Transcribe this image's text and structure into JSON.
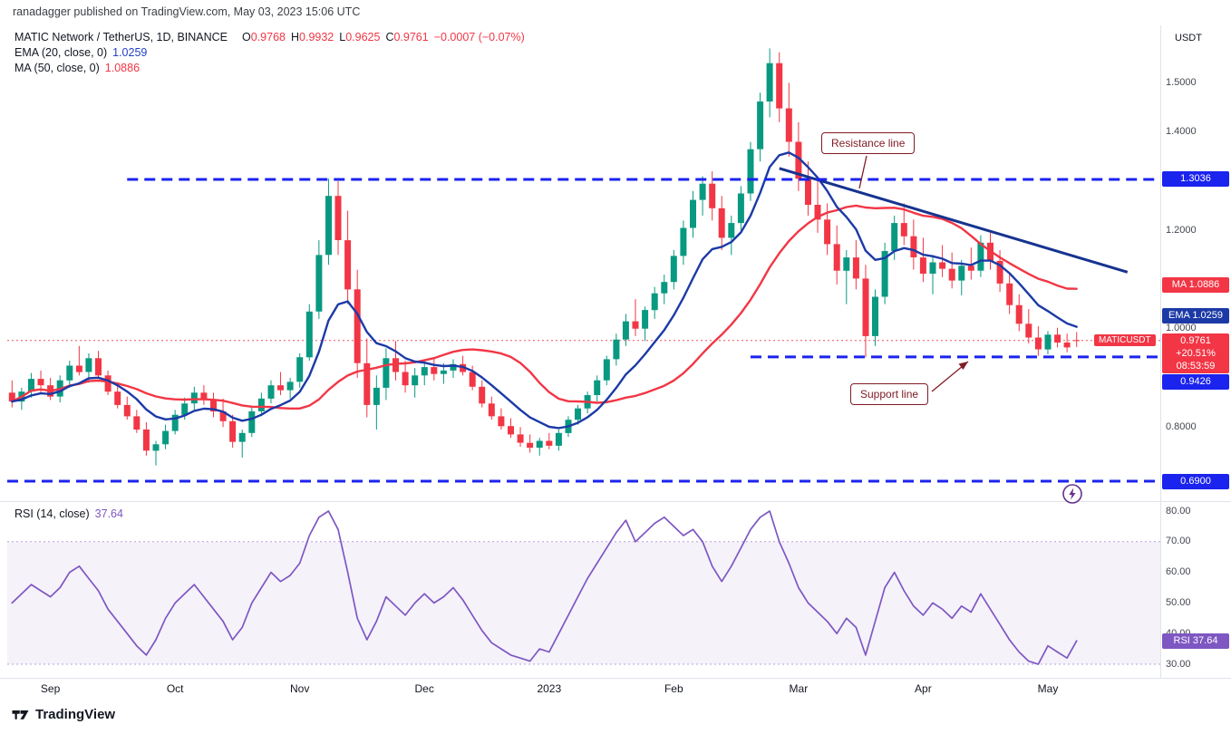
{
  "colors": {
    "up": "#089981",
    "down": "#f23645",
    "blue": "#1b23ee",
    "ema": "#1c3aa6",
    "ma": "#f23645",
    "trend": "#16338f",
    "rsi": "#7e57c2",
    "rsi_fill": "rgba(126,87,194,0.08)",
    "annotation": "#801c24",
    "axis_text": "#434651",
    "text": "#131722"
  },
  "header": {
    "published_line": "ranadagger published on TradingView.com, May 03, 2023 15:06 UTC"
  },
  "legend": {
    "symbol": "MATIC Network / TetherUS, 1D, BINANCE",
    "ohlc": {
      "o_label": "O",
      "o_value": "0.9768",
      "h_label": "H",
      "h_value": "0.9932",
      "l_label": "L",
      "l_value": "0.9625",
      "c_label": "C",
      "c_value": "0.9761",
      "change": "−0.0007 (−0.07%)"
    },
    "ema": {
      "label": "EMA (20, close, 0)",
      "value": "1.0259"
    },
    "ma": {
      "label": "MA (50, close, 0)",
      "value": "1.0886"
    }
  },
  "rsi_legend": {
    "label": "RSI (14, close)",
    "value": "37.64"
  },
  "annotations": {
    "resistance_label": "Resistance line",
    "support_label": "Support line"
  },
  "axis": {
    "unit": "USDT",
    "price_ticks": [
      {
        "label": "1.5000",
        "value": 1.5
      },
      {
        "label": "1.4000",
        "value": 1.4
      },
      {
        "label": "1.2000",
        "value": 1.2
      },
      {
        "label": "1.0000",
        "value": 1.0
      },
      {
        "label": "0.8000",
        "value": 0.8
      }
    ],
    "rsi_ticks": [
      {
        "label": "80.00",
        "value": 80
      },
      {
        "label": "70.00",
        "value": 70
      },
      {
        "label": "60.00",
        "value": 60
      },
      {
        "label": "50.00",
        "value": 50
      },
      {
        "label": "40.00",
        "value": 40
      },
      {
        "label": "30.00",
        "value": 30
      }
    ],
    "time_ticks": [
      {
        "label": "Sep",
        "index": 4
      },
      {
        "label": "Oct",
        "index": 17
      },
      {
        "label": "Nov",
        "index": 30
      },
      {
        "label": "Dec",
        "index": 43
      },
      {
        "label": "2023",
        "index": 56
      },
      {
        "label": "Feb",
        "index": 69
      },
      {
        "label": "Mar",
        "index": 82
      },
      {
        "label": "Apr",
        "index": 95
      },
      {
        "label": "May",
        "index": 108
      }
    ],
    "level_badges": [
      {
        "label": "1.3036",
        "price": 1.3036
      },
      {
        "label": "0.9426",
        "price": 0.9426
      },
      {
        "label": "0.6900",
        "price": 0.69
      }
    ],
    "ma_badge": {
      "text": "MA 1.0886",
      "price": 1.0886
    },
    "ema_badge": {
      "text": "EMA 1.0259",
      "price": 1.0259
    },
    "price_badge": {
      "symbol": "MATICUSDT",
      "price": "0.9761",
      "price_value": 0.9761,
      "change_pct": "+20.51%",
      "countdown": "08:53:59"
    },
    "rsi_badge": {
      "text": "RSI 37.64",
      "value": 37.64
    }
  },
  "watermark": {
    "brand": "TradingView"
  },
  "chart_data": {
    "type": "candlestick",
    "symbol": "MATIC Network / TetherUS",
    "interval": "1D",
    "exchange": "BINANCE",
    "ohlc_last": {
      "open": 0.9768,
      "high": 0.9932,
      "low": 0.9625,
      "close": 0.9761,
      "change": -0.0007,
      "change_pct": -0.07
    },
    "price_axis": {
      "min": 0.664,
      "max": 1.617
    },
    "last_price": 0.9761,
    "levels": [
      {
        "price": 1.3036,
        "style": "dashed",
        "start_index": 12
      },
      {
        "price": 0.9426,
        "style": "dashed",
        "start_index": 77
      },
      {
        "price": 0.69,
        "style": "dashed",
        "start_index": null
      }
    ],
    "trendline": {
      "label": "Resistance line",
      "from": {
        "index": 80,
        "price": 1.326
      },
      "to": {
        "index": 116.3,
        "price": 1.115
      }
    },
    "overlays": [
      {
        "name": "EMA 20",
        "period": 20,
        "last": 1.0259
      },
      {
        "name": "MA 50",
        "period": 50,
        "last": 1.0886
      }
    ],
    "time_labels": [
      "Sep",
      "Oct",
      "Nov",
      "Dec",
      "2023",
      "Feb",
      "Mar",
      "Apr",
      "May"
    ],
    "candles": [
      [
        0.87,
        0.895,
        0.84,
        0.852
      ],
      [
        0.852,
        0.88,
        0.835,
        0.872
      ],
      [
        0.872,
        0.91,
        0.86,
        0.898
      ],
      [
        0.898,
        0.915,
        0.87,
        0.885
      ],
      [
        0.885,
        0.9,
        0.855,
        0.862
      ],
      [
        0.862,
        0.905,
        0.85,
        0.895
      ],
      [
        0.895,
        0.935,
        0.88,
        0.925
      ],
      [
        0.925,
        0.965,
        0.905,
        0.912
      ],
      [
        0.912,
        0.95,
        0.89,
        0.94
      ],
      [
        0.94,
        0.955,
        0.9,
        0.905
      ],
      [
        0.905,
        0.915,
        0.865,
        0.872
      ],
      [
        0.872,
        0.885,
        0.838,
        0.845
      ],
      [
        0.845,
        0.862,
        0.815,
        0.822
      ],
      [
        0.822,
        0.835,
        0.788,
        0.795
      ],
      [
        0.795,
        0.81,
        0.742,
        0.752
      ],
      [
        0.752,
        0.772,
        0.722,
        0.765
      ],
      [
        0.765,
        0.805,
        0.755,
        0.792
      ],
      [
        0.792,
        0.835,
        0.785,
        0.825
      ],
      [
        0.825,
        0.86,
        0.815,
        0.848
      ],
      [
        0.848,
        0.882,
        0.835,
        0.87
      ],
      [
        0.87,
        0.885,
        0.845,
        0.855
      ],
      [
        0.855,
        0.87,
        0.82,
        0.832
      ],
      [
        0.832,
        0.858,
        0.8,
        0.812
      ],
      [
        0.812,
        0.825,
        0.758,
        0.77
      ],
      [
        0.77,
        0.795,
        0.738,
        0.788
      ],
      [
        0.788,
        0.84,
        0.78,
        0.832
      ],
      [
        0.832,
        0.87,
        0.822,
        0.858
      ],
      [
        0.858,
        0.895,
        0.848,
        0.885
      ],
      [
        0.885,
        0.912,
        0.865,
        0.875
      ],
      [
        0.875,
        0.9,
        0.858,
        0.892
      ],
      [
        0.892,
        0.95,
        0.88,
        0.942
      ],
      [
        0.942,
        1.05,
        0.935,
        1.035
      ],
      [
        1.035,
        1.18,
        1.02,
        1.15
      ],
      [
        1.15,
        1.305,
        1.13,
        1.27
      ],
      [
        1.27,
        1.3,
        1.15,
        1.18
      ],
      [
        1.18,
        1.24,
        1.05,
        1.08
      ],
      [
        1.08,
        1.12,
        0.9,
        0.93
      ],
      [
        0.93,
        0.98,
        0.82,
        0.845
      ],
      [
        0.845,
        0.905,
        0.795,
        0.88
      ],
      [
        0.88,
        0.96,
        0.855,
        0.94
      ],
      [
        0.94,
        0.975,
        0.895,
        0.912
      ],
      [
        0.912,
        0.935,
        0.87,
        0.885
      ],
      [
        0.885,
        0.92,
        0.86,
        0.905
      ],
      [
        0.905,
        0.935,
        0.885,
        0.922
      ],
      [
        0.922,
        0.94,
        0.895,
        0.908
      ],
      [
        0.908,
        0.93,
        0.888,
        0.915
      ],
      [
        0.915,
        0.938,
        0.9,
        0.928
      ],
      [
        0.928,
        0.945,
        0.905,
        0.912
      ],
      [
        0.912,
        0.925,
        0.875,
        0.882
      ],
      [
        0.882,
        0.895,
        0.84,
        0.848
      ],
      [
        0.848,
        0.862,
        0.815,
        0.822
      ],
      [
        0.822,
        0.838,
        0.795,
        0.802
      ],
      [
        0.802,
        0.818,
        0.778,
        0.785
      ],
      [
        0.785,
        0.8,
        0.76,
        0.768
      ],
      [
        0.768,
        0.785,
        0.748,
        0.758
      ],
      [
        0.758,
        0.778,
        0.742,
        0.772
      ],
      [
        0.772,
        0.788,
        0.755,
        0.762
      ],
      [
        0.762,
        0.795,
        0.752,
        0.788
      ],
      [
        0.788,
        0.822,
        0.78,
        0.815
      ],
      [
        0.815,
        0.845,
        0.805,
        0.838
      ],
      [
        0.838,
        0.872,
        0.828,
        0.865
      ],
      [
        0.865,
        0.905,
        0.852,
        0.895
      ],
      [
        0.895,
        0.945,
        0.885,
        0.938
      ],
      [
        0.938,
        0.99,
        0.925,
        0.978
      ],
      [
        0.978,
        1.03,
        0.965,
        1.015
      ],
      [
        1.015,
        1.06,
        0.985,
        1.0
      ],
      [
        1.0,
        1.045,
        0.975,
        1.038
      ],
      [
        1.038,
        1.085,
        1.02,
        1.072
      ],
      [
        1.072,
        1.11,
        1.05,
        1.095
      ],
      [
        1.095,
        1.16,
        1.08,
        1.148
      ],
      [
        1.148,
        1.22,
        1.13,
        1.205
      ],
      [
        1.205,
        1.28,
        1.185,
        1.262
      ],
      [
        1.262,
        1.31,
        1.23,
        1.295
      ],
      [
        1.295,
        1.32,
        1.22,
        1.245
      ],
      [
        1.245,
        1.27,
        1.16,
        1.185
      ],
      [
        1.185,
        1.23,
        1.15,
        1.215
      ],
      [
        1.215,
        1.29,
        1.2,
        1.275
      ],
      [
        1.275,
        1.38,
        1.26,
        1.365
      ],
      [
        1.365,
        1.48,
        1.34,
        1.462
      ],
      [
        1.462,
        1.57,
        1.43,
        1.54
      ],
      [
        1.54,
        1.562,
        1.42,
        1.448
      ],
      [
        1.448,
        1.5,
        1.35,
        1.38
      ],
      [
        1.38,
        1.42,
        1.28,
        1.305
      ],
      [
        1.305,
        1.34,
        1.23,
        1.252
      ],
      [
        1.252,
        1.3,
        1.195,
        1.222
      ],
      [
        1.222,
        1.255,
        1.15,
        1.172
      ],
      [
        1.172,
        1.21,
        1.09,
        1.118
      ],
      [
        1.118,
        1.16,
        1.05,
        1.145
      ],
      [
        1.145,
        1.18,
        1.08,
        1.102
      ],
      [
        1.102,
        1.13,
        0.942,
        0.985
      ],
      [
        0.985,
        1.08,
        0.965,
        1.065
      ],
      [
        1.065,
        1.175,
        1.05,
        1.158
      ],
      [
        1.158,
        1.23,
        1.14,
        1.215
      ],
      [
        1.215,
        1.255,
        1.17,
        1.188
      ],
      [
        1.188,
        1.222,
        1.12,
        1.145
      ],
      [
        1.145,
        1.185,
        1.095,
        1.112
      ],
      [
        1.112,
        1.15,
        1.07,
        1.135
      ],
      [
        1.135,
        1.17,
        1.105,
        1.122
      ],
      [
        1.122,
        1.155,
        1.082,
        1.098
      ],
      [
        1.098,
        1.14,
        1.068,
        1.128
      ],
      [
        1.128,
        1.165,
        1.1,
        1.118
      ],
      [
        1.118,
        1.19,
        1.105,
        1.175
      ],
      [
        1.175,
        1.195,
        1.12,
        1.138
      ],
      [
        1.138,
        1.16,
        1.075,
        1.092
      ],
      [
        1.092,
        1.115,
        1.03,
        1.048
      ],
      [
        1.048,
        1.07,
        0.995,
        1.01
      ],
      [
        1.01,
        1.04,
        0.97,
        0.982
      ],
      [
        0.982,
        1.005,
        0.945,
        0.958
      ],
      [
        0.958,
        0.995,
        0.948,
        0.988
      ],
      [
        0.988,
        1.002,
        0.962,
        0.972
      ],
      [
        0.972,
        0.99,
        0.952,
        0.962
      ],
      [
        0.9768,
        0.9932,
        0.9625,
        0.9761
      ]
    ],
    "rsi": {
      "period": 14,
      "last": 37.64,
      "band": [
        30,
        70
      ],
      "axis": {
        "min": 27,
        "max": 82
      },
      "values": [
        50,
        53,
        56,
        54,
        52,
        55,
        60,
        62,
        58,
        54,
        48,
        44,
        40,
        36,
        33,
        38,
        45,
        50,
        53,
        56,
        52,
        48,
        44,
        38,
        42,
        50,
        55,
        60,
        57,
        59,
        63,
        72,
        78,
        80,
        74,
        60,
        45,
        38,
        44,
        52,
        49,
        46,
        50,
        53,
        50,
        52,
        55,
        51,
        46,
        41,
        37,
        35,
        33,
        32,
        31,
        35,
        34,
        40,
        46,
        52,
        58,
        63,
        68,
        73,
        77,
        70,
        73,
        76,
        78,
        75,
        72,
        74,
        70,
        62,
        57,
        62,
        68,
        74,
        78,
        80,
        70,
        63,
        55,
        50,
        47,
        44,
        40,
        45,
        42,
        33,
        44,
        55,
        60,
        54,
        49,
        46,
        50,
        48,
        45,
        49,
        47,
        53,
        48,
        43,
        38,
        34,
        31,
        30,
        36,
        34,
        32,
        37.64
      ]
    }
  }
}
